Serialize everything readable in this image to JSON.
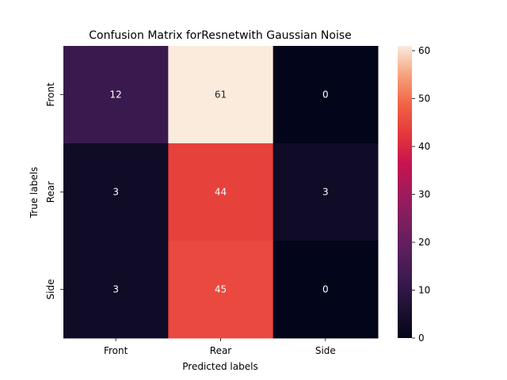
{
  "chart_data": {
    "type": "heatmap",
    "title": "Confusion Matrix forResnetwith Gaussian Noise",
    "xlabel": "Predicted labels",
    "ylabel": "True labels",
    "x_categories": [
      "Front",
      "Rear",
      "Side"
    ],
    "y_categories": [
      "Front",
      "Rear",
      "Side"
    ],
    "values": [
      [
        12,
        61,
        0
      ],
      [
        3,
        44,
        3
      ],
      [
        3,
        45,
        0
      ]
    ],
    "colorbar": {
      "range": [
        0,
        61
      ],
      "ticks": [
        "0",
        "10",
        "20",
        "30",
        "40",
        "50",
        "60"
      ],
      "colormap": "rocket"
    },
    "grid": false,
    "legend": "colorbar-right"
  }
}
